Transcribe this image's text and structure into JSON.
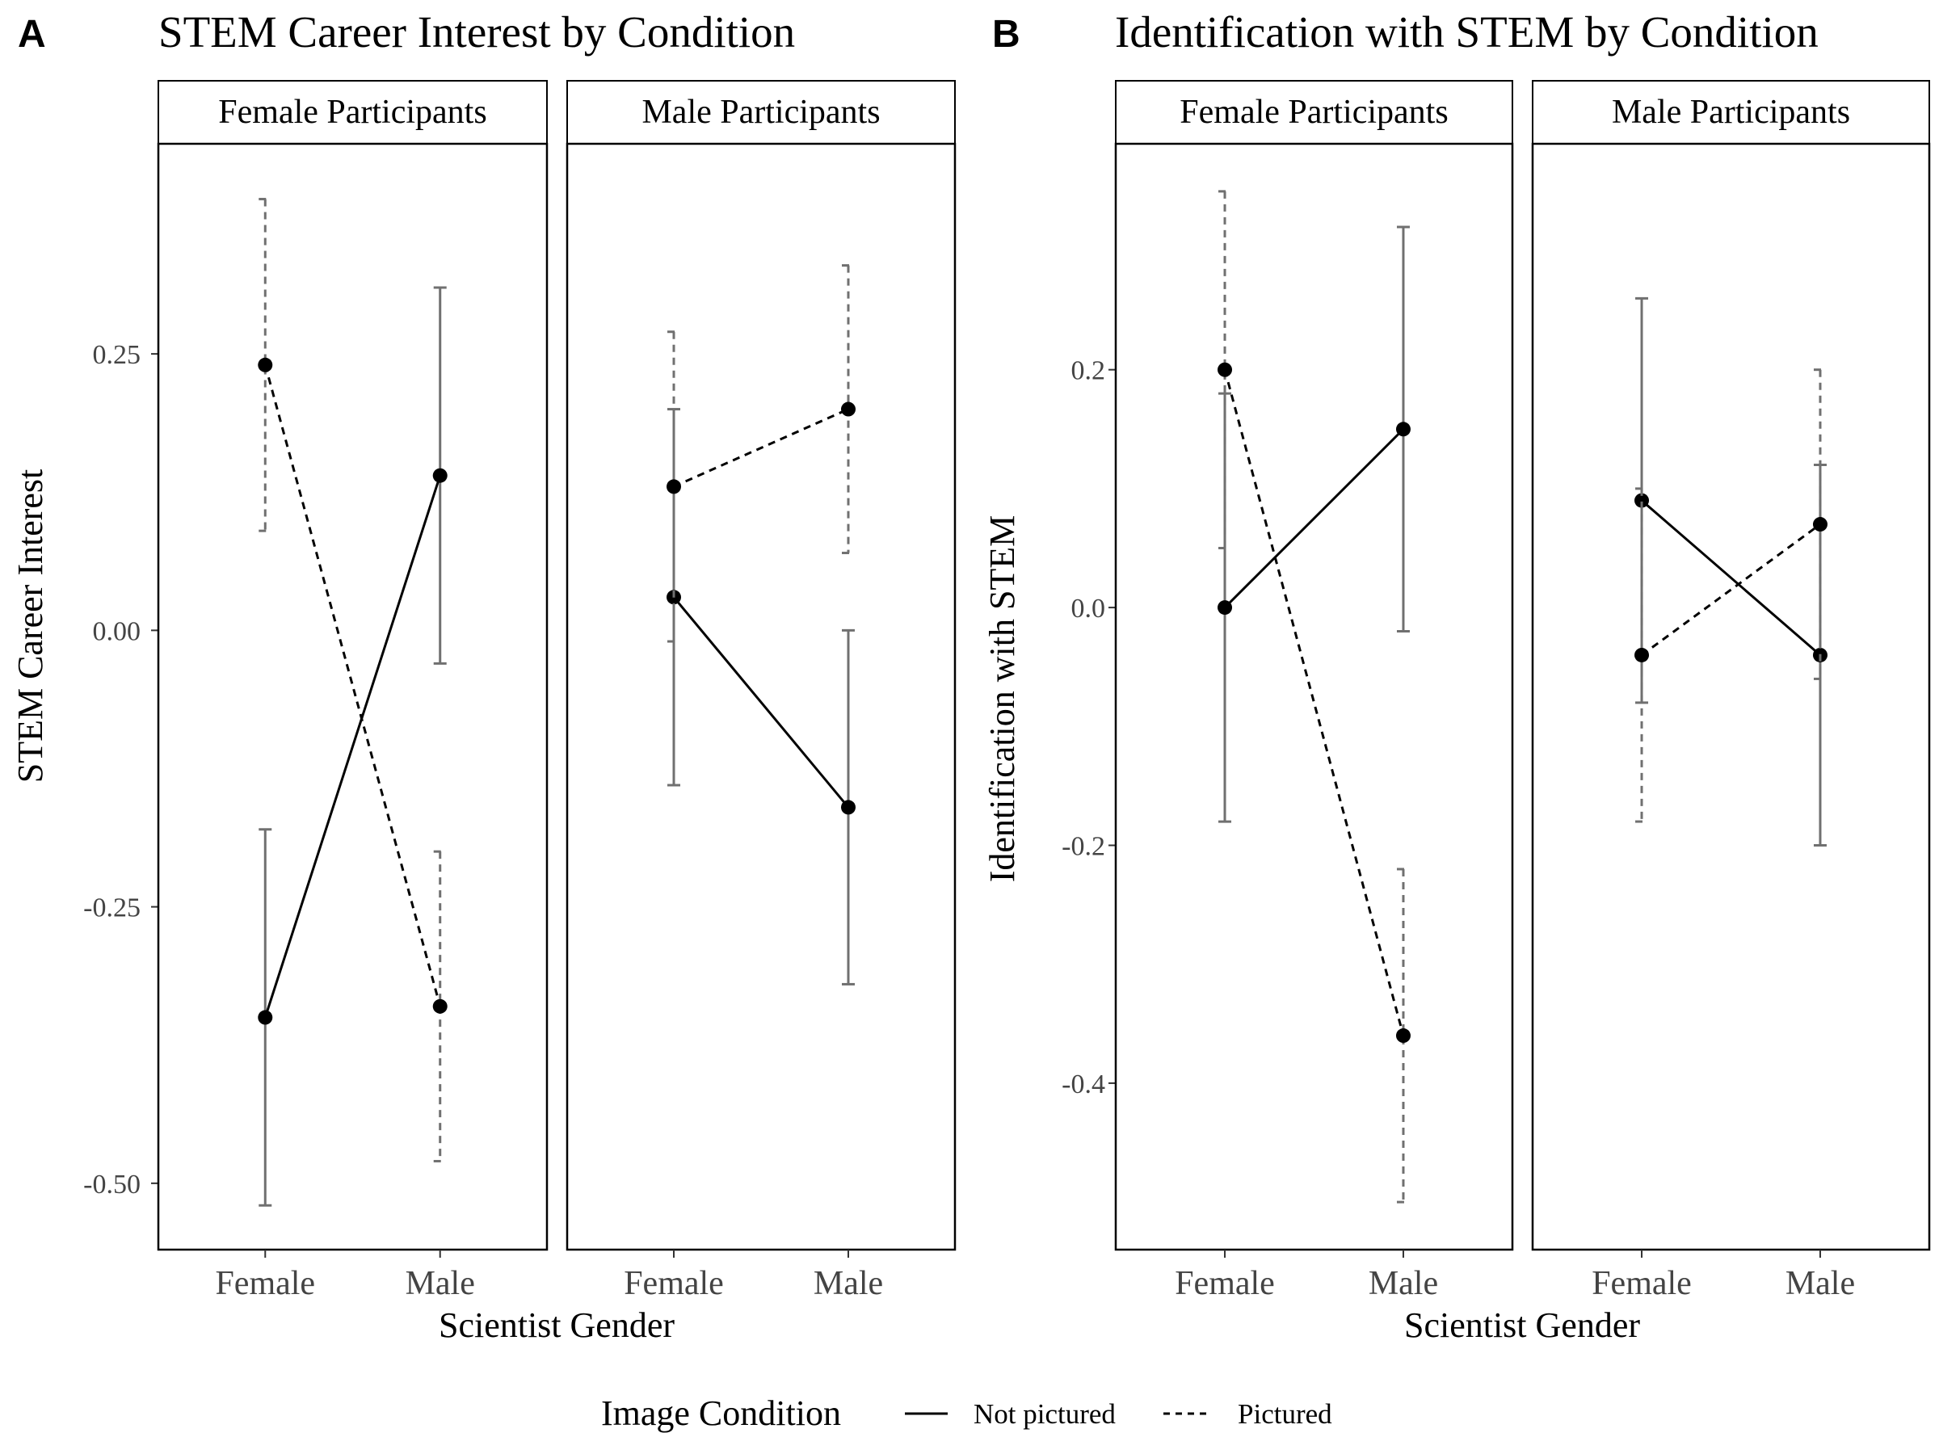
{
  "legend": {
    "title": "Image Condition",
    "items": [
      {
        "label": "Not pictured",
        "style": "solid"
      },
      {
        "label": "Pictured",
        "style": "dashed"
      }
    ]
  },
  "colors": {
    "point": "#000000",
    "line": "#000000",
    "errorbar": "#707070",
    "panel_border": "#000000",
    "strip_background": "#ffffff",
    "background": "#ffffff"
  },
  "chart_data": [
    {
      "type": "line",
      "panel_letter": "A",
      "title": "STEM Career Interest by Condition",
      "xlabel": "Scientist Gender",
      "ylabel": "STEM Career Interest",
      "ylim": [
        -0.56,
        0.44
      ],
      "yticks": [
        -0.5,
        -0.25,
        0.0,
        0.25
      ],
      "ytick_labels": [
        "-0.50",
        "-0.25",
        "0.00",
        "0.25"
      ],
      "categories": [
        "Female",
        "Male"
      ],
      "grid": false,
      "legend_position": "bottom",
      "facets": [
        {
          "strip": "Female Participants",
          "series": [
            {
              "name": "Not pictured",
              "values": [
                -0.35,
                0.14
              ],
              "lower": [
                -0.52,
                -0.03
              ],
              "upper": [
                -0.18,
                0.31
              ]
            },
            {
              "name": "Pictured",
              "values": [
                0.24,
                -0.34
              ],
              "lower": [
                0.09,
                -0.48
              ],
              "upper": [
                0.39,
                -0.2
              ]
            }
          ]
        },
        {
          "strip": "Male Participants",
          "series": [
            {
              "name": "Not pictured",
              "values": [
                0.03,
                -0.16
              ],
              "lower": [
                -0.14,
                -0.32
              ],
              "upper": [
                0.2,
                0.0
              ]
            },
            {
              "name": "Pictured",
              "values": [
                0.13,
                0.2
              ],
              "lower": [
                -0.01,
                0.07
              ],
              "upper": [
                0.27,
                0.33
              ]
            }
          ]
        }
      ]
    },
    {
      "type": "line",
      "panel_letter": "B",
      "title": "Identification with STEM by Condition",
      "xlabel": "Scientist Gender",
      "ylabel": "Identification with STEM",
      "ylim": [
        -0.54,
        0.39
      ],
      "yticks": [
        -0.4,
        -0.2,
        0.0,
        0.2
      ],
      "ytick_labels": [
        "-0.4",
        "-0.2",
        "0.0",
        "0.2"
      ],
      "categories": [
        "Female",
        "Male"
      ],
      "grid": false,
      "legend_position": "bottom",
      "facets": [
        {
          "strip": "Female Participants",
          "series": [
            {
              "name": "Not pictured",
              "values": [
                0.0,
                0.15
              ],
              "lower": [
                -0.18,
                -0.02
              ],
              "upper": [
                0.18,
                0.32
              ]
            },
            {
              "name": "Pictured",
              "values": [
                0.2,
                -0.36
              ],
              "lower": [
                0.05,
                -0.5
              ],
              "upper": [
                0.35,
                -0.22
              ]
            }
          ]
        },
        {
          "strip": "Male Participants",
          "series": [
            {
              "name": "Not pictured",
              "values": [
                0.09,
                -0.04
              ],
              "lower": [
                -0.08,
                -0.2
              ],
              "upper": [
                0.26,
                0.12
              ]
            },
            {
              "name": "Pictured",
              "values": [
                -0.04,
                0.07
              ],
              "lower": [
                -0.18,
                -0.06
              ],
              "upper": [
                0.1,
                0.2
              ]
            }
          ]
        }
      ]
    }
  ]
}
